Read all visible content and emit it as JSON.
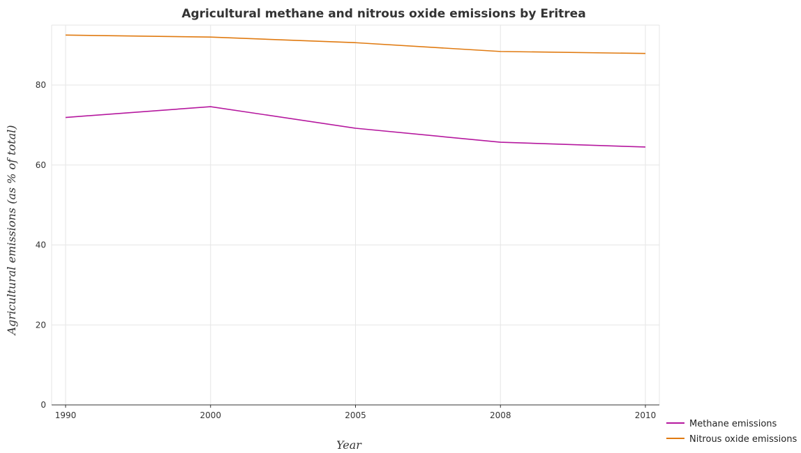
{
  "chart_data": {
    "type": "line",
    "title": "Agricultural methane and nitrous oxide emissions by Eritrea",
    "xlabel": "Year",
    "ylabel": "Agricultural emissions (as % of total)",
    "categories": [
      "1990",
      "2000",
      "2005",
      "2008",
      "2010"
    ],
    "ylim": [
      0,
      95
    ],
    "yticks": [
      "0",
      "20",
      "40",
      "60",
      "80"
    ],
    "grid": true,
    "legend_position": "bottom-right",
    "series": [
      {
        "name": "Methane emissions",
        "color": "#b5179e",
        "values": [
          71.9,
          74.6,
          69.2,
          65.7,
          64.5
        ]
      },
      {
        "name": "Nitrous oxide emissions",
        "color": "#e07a10",
        "values": [
          92.5,
          92.0,
          90.6,
          88.4,
          87.9
        ]
      }
    ]
  }
}
